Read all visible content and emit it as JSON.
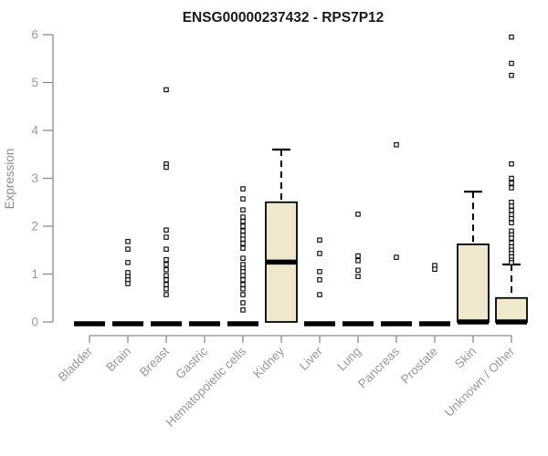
{
  "chart_data": {
    "type": "boxplot",
    "title": "ENSG00000237432 - RPS7P12",
    "ylabel": "Expression",
    "xlabel": "",
    "ylim": [
      0,
      6
    ],
    "yticks": [
      0,
      1,
      2,
      3,
      4,
      5,
      6
    ],
    "grid": false,
    "legend": false,
    "categories": [
      "Bladder",
      "Brain",
      "Breast",
      "Gastric",
      "Hematopoietic cells",
      "Kidney",
      "Liver",
      "Lung",
      "Pancreas",
      "Prostate",
      "Skin",
      "Unknown / Other"
    ],
    "series": [
      {
        "category": "Bladder",
        "whisker_low": 0,
        "q1": 0,
        "median": 0,
        "q3": 0,
        "whisker_high": 0,
        "outliers": []
      },
      {
        "category": "Brain",
        "whisker_low": 0,
        "q1": 0,
        "median": 0,
        "q3": 0,
        "whisker_high": 0,
        "outliers": [
          1.68,
          1.52,
          1.24,
          1.03,
          0.95,
          0.88,
          0.8
        ]
      },
      {
        "category": "Breast",
        "whisker_low": 0,
        "q1": 0,
        "median": 0,
        "q3": 0,
        "whisker_high": 0,
        "outliers": [
          4.85,
          3.3,
          3.23,
          1.92,
          1.77,
          1.52,
          1.3,
          1.2,
          1.09,
          0.97,
          0.88,
          0.78,
          0.69,
          0.57
        ]
      },
      {
        "category": "Gastric",
        "whisker_low": 0,
        "q1": 0,
        "median": 0,
        "q3": 0,
        "whisker_high": 0,
        "outliers": []
      },
      {
        "category": "Hematopoietic cells",
        "whisker_low": 0,
        "q1": 0,
        "median": 0,
        "q3": 0,
        "whisker_high": 0,
        "outliers": [
          2.78,
          2.57,
          2.34,
          2.19,
          2.1,
          2.0,
          1.9,
          1.81,
          1.73,
          1.64,
          1.54,
          1.33,
          1.2,
          1.12,
          1.05,
          0.97,
          0.88,
          0.78,
          0.69,
          0.57,
          0.4,
          0.25
        ]
      },
      {
        "category": "Kidney",
        "whisker_low": 0,
        "q1": 0,
        "median": 1.25,
        "q3": 2.5,
        "whisker_high": 3.6,
        "outliers": []
      },
      {
        "category": "Liver",
        "whisker_low": 0,
        "q1": 0,
        "median": 0,
        "q3": 0,
        "whisker_high": 0,
        "outliers": [
          1.71,
          1.43,
          1.05,
          0.88,
          0.57
        ]
      },
      {
        "category": "Lung",
        "whisker_low": 0,
        "q1": 0,
        "median": 0,
        "q3": 0,
        "whisker_high": 0,
        "outliers": [
          2.25,
          1.38,
          1.28,
          1.08,
          0.95
        ]
      },
      {
        "category": "Pancreas",
        "whisker_low": 0,
        "q1": 0,
        "median": 0,
        "q3": 0,
        "whisker_high": 0,
        "outliers": [
          3.7,
          1.35
        ]
      },
      {
        "category": "Prostate",
        "whisker_low": 0,
        "q1": 0,
        "median": 0,
        "q3": 0,
        "whisker_high": 0,
        "outliers": [
          1.18,
          1.1
        ]
      },
      {
        "category": "Skin",
        "whisker_low": 0,
        "q1": 0,
        "median": 0,
        "q3": 1.62,
        "whisker_high": 2.72,
        "outliers": []
      },
      {
        "category": "Unknown / Other",
        "whisker_low": 0,
        "q1": 0,
        "median": 0,
        "q3": 0.5,
        "whisker_high": 1.2,
        "outliers": [
          5.95,
          5.4,
          5.15,
          3.3,
          3.0,
          2.9,
          2.8,
          2.5,
          2.42,
          2.33,
          2.24,
          2.16,
          2.07,
          1.9,
          1.82,
          1.75,
          1.65,
          1.57,
          1.5,
          1.43,
          1.36,
          1.29,
          1.24
        ]
      }
    ],
    "colors": {
      "box_fill": "#EFE8CC",
      "box_border": "#000000",
      "whisker": "#000000",
      "outlier": "#000000",
      "axis": "#8C8C8C",
      "tick_label": "#999999",
      "title": "#1A1A1A",
      "background": "#FFFFFF"
    }
  }
}
